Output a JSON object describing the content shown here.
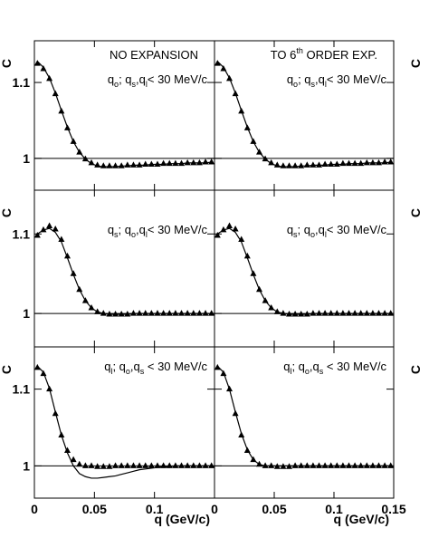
{
  "chart_data": [
    {
      "type": "line",
      "title": [
        "NO EXPANSION"
      ],
      "annotation": [
        "q",
        "o",
        "; q",
        "s",
        ",q",
        "l",
        "< 30 MeV/c"
      ],
      "annotation_script": "sub",
      "ylabel": "C",
      "xlim": [
        0,
        0.15
      ],
      "xticks": [
        0,
        0.05,
        0.1
      ],
      "x_tick_labels": false,
      "ylim": [
        0.958,
        1.155
      ],
      "yticks": [
        1,
        1.1
      ],
      "y_tick_labels": true,
      "reference_line": 1,
      "x": [
        0.0025,
        0.0075,
        0.0125,
        0.0175,
        0.0225,
        0.0275,
        0.0325,
        0.0375,
        0.0425,
        0.0475,
        0.0525,
        0.0575,
        0.0625,
        0.0675,
        0.0725,
        0.0775,
        0.0825,
        0.0875,
        0.0925,
        0.0975,
        0.1025,
        0.1075,
        0.1125,
        0.1175,
        0.1225,
        0.1275,
        0.1325,
        0.1375,
        0.1425,
        0.1475
      ],
      "series": [
        {
          "marker": "triangle",
          "color": "#000000",
          "values": [
            1.125,
            1.118,
            1.105,
            1.085,
            1.062,
            1.04,
            1.022,
            1.008,
            0.999,
            0.994,
            0.991,
            0.99,
            0.99,
            0.99,
            0.99,
            0.991,
            0.991,
            0.991,
            0.992,
            0.992,
            0.992,
            0.993,
            0.993,
            0.993,
            0.993,
            0.994,
            0.994,
            0.994,
            0.995,
            0.995
          ]
        },
        {
          "style": "line",
          "color": "#000000",
          "values": [
            1.128,
            1.12,
            1.106,
            1.086,
            1.063,
            1.041,
            1.022,
            1.008,
            0.999,
            0.993,
            0.99,
            0.989,
            0.989,
            0.989,
            0.99,
            0.99,
            0.991,
            0.991,
            0.991,
            0.992,
            0.992,
            0.992,
            0.993,
            0.993,
            0.993,
            0.994,
            0.994,
            0.994,
            0.994,
            0.995
          ]
        }
      ]
    },
    {
      "type": "line",
      "title": [
        "TO 6",
        "th",
        " ORDER EXP."
      ],
      "title_script": "sup",
      "annotation": [
        "q",
        "o",
        "; q",
        "s",
        ",q",
        "l",
        "< 30 MeV/c"
      ],
      "annotation_script": "sub",
      "ylabel": "C",
      "xlim": [
        0,
        0.15
      ],
      "xticks": [
        0,
        0.05,
        0.1,
        0.15
      ],
      "x_tick_labels": false,
      "ylim": [
        0.958,
        1.155
      ],
      "yticks": [
        1,
        1.1
      ],
      "y_tick_labels": false,
      "reference_line": 1,
      "x": [
        0.0025,
        0.0075,
        0.0125,
        0.0175,
        0.0225,
        0.0275,
        0.0325,
        0.0375,
        0.0425,
        0.0475,
        0.0525,
        0.0575,
        0.0625,
        0.0675,
        0.0725,
        0.0775,
        0.0825,
        0.0875,
        0.0925,
        0.0975,
        0.1025,
        0.1075,
        0.1125,
        0.1175,
        0.1225,
        0.1275,
        0.1325,
        0.1375,
        0.1425,
        0.1475
      ],
      "series": [
        {
          "marker": "triangle",
          "color": "#000000",
          "values": [
            1.125,
            1.118,
            1.105,
            1.085,
            1.062,
            1.04,
            1.022,
            1.008,
            0.999,
            0.994,
            0.991,
            0.99,
            0.99,
            0.99,
            0.99,
            0.991,
            0.991,
            0.991,
            0.992,
            0.992,
            0.992,
            0.993,
            0.993,
            0.993,
            0.993,
            0.994,
            0.994,
            0.994,
            0.995,
            0.995
          ]
        },
        {
          "style": "line",
          "color": "#000000",
          "values": [
            1.128,
            1.12,
            1.106,
            1.086,
            1.063,
            1.041,
            1.022,
            1.008,
            0.999,
            0.993,
            0.99,
            0.989,
            0.989,
            0.989,
            0.99,
            0.99,
            0.991,
            0.991,
            0.991,
            0.992,
            0.992,
            0.992,
            0.993,
            0.993,
            0.993,
            0.994,
            0.994,
            0.994,
            0.994,
            0.995
          ]
        }
      ]
    },
    {
      "type": "line",
      "annotation": [
        "q",
        "s",
        "; q",
        "o",
        ",q",
        "l",
        "< 30 MeV/c"
      ],
      "annotation_script": "sub",
      "ylabel": "C",
      "xlim": [
        0,
        0.15
      ],
      "xticks": [
        0,
        0.05,
        0.1
      ],
      "x_tick_labels": false,
      "ylim": [
        0.958,
        1.155
      ],
      "yticks": [
        1,
        1.1
      ],
      "y_tick_labels": true,
      "reference_line": 1,
      "x": [
        0.0025,
        0.0075,
        0.0125,
        0.0175,
        0.0225,
        0.0275,
        0.0325,
        0.0375,
        0.0425,
        0.0475,
        0.0525,
        0.0575,
        0.0625,
        0.0675,
        0.0725,
        0.0775,
        0.0825,
        0.0875,
        0.0925,
        0.0975,
        0.1025,
        0.1075,
        0.1125,
        0.1175,
        0.1225,
        0.1275,
        0.1325,
        0.1375,
        0.1425,
        0.1475
      ],
      "series": [
        {
          "marker": "triangle",
          "color": "#000000",
          "values": [
            1.098,
            1.105,
            1.11,
            1.106,
            1.093,
            1.072,
            1.05,
            1.03,
            1.016,
            1.007,
            1.002,
            1.0,
            0.999,
            0.999,
            0.999,
            0.999,
            1.0,
            1.0,
            1.0,
            1.0,
            1.0,
            1.0,
            1.0,
            1.0,
            1.0,
            1.0,
            1.0,
            1.0,
            1.0,
            1.0
          ]
        },
        {
          "style": "line",
          "color": "#000000",
          "values": [
            1.1,
            1.105,
            1.107,
            1.102,
            1.09,
            1.07,
            1.049,
            1.03,
            1.016,
            1.007,
            1.002,
            1.0,
            0.999,
            0.999,
            0.999,
            0.999,
            1.0,
            1.0,
            1.0,
            1.0,
            1.0,
            1.0,
            1.0,
            1.0,
            1.0,
            1.0,
            1.0,
            1.0,
            1.0,
            1.0
          ]
        }
      ]
    },
    {
      "type": "line",
      "annotation": [
        "q",
        "s",
        "; q",
        "o",
        ",q",
        "l",
        "< 30 MeV/c"
      ],
      "annotation_script": "sub",
      "ylabel": "C",
      "xlim": [
        0,
        0.15
      ],
      "xticks": [
        0,
        0.05,
        0.1,
        0.15
      ],
      "x_tick_labels": false,
      "ylim": [
        0.958,
        1.155
      ],
      "yticks": [
        1,
        1.1
      ],
      "y_tick_labels": false,
      "reference_line": 1,
      "x": [
        0.0025,
        0.0075,
        0.0125,
        0.0175,
        0.0225,
        0.0275,
        0.0325,
        0.0375,
        0.0425,
        0.0475,
        0.0525,
        0.0575,
        0.0625,
        0.0675,
        0.0725,
        0.0775,
        0.0825,
        0.0875,
        0.0925,
        0.0975,
        0.1025,
        0.1075,
        0.1125,
        0.1175,
        0.1225,
        0.1275,
        0.1325,
        0.1375,
        0.1425,
        0.1475
      ],
      "series": [
        {
          "marker": "triangle",
          "color": "#000000",
          "values": [
            1.098,
            1.105,
            1.11,
            1.106,
            1.093,
            1.072,
            1.05,
            1.03,
            1.016,
            1.007,
            1.002,
            1.0,
            0.999,
            0.999,
            0.999,
            0.999,
            1.0,
            1.0,
            1.0,
            1.0,
            1.0,
            1.0,
            1.0,
            1.0,
            1.0,
            1.0,
            1.0,
            1.0,
            1.0,
            1.0
          ]
        },
        {
          "style": "line",
          "color": "#000000",
          "values": [
            1.1,
            1.105,
            1.107,
            1.102,
            1.09,
            1.07,
            1.049,
            1.03,
            1.016,
            1.007,
            1.002,
            1.0,
            0.999,
            0.999,
            0.999,
            0.999,
            1.0,
            1.0,
            1.0,
            1.0,
            1.0,
            1.0,
            1.0,
            1.0,
            1.0,
            1.0,
            1.0,
            1.0,
            1.0,
            1.0
          ]
        }
      ]
    },
    {
      "type": "line",
      "annotation": [
        "q",
        "l",
        "; q",
        "o",
        ",q",
        "s",
        " < 30 MeV/c"
      ],
      "annotation_script": "sub",
      "ylabel": "C",
      "xlabel": "q (GeV/c)",
      "xlim": [
        0,
        0.15
      ],
      "xticks": [
        0,
        0.05,
        0.1
      ],
      "x_tick_labels": true,
      "ylim": [
        0.958,
        1.155
      ],
      "yticks": [
        1,
        1.1
      ],
      "y_tick_labels": true,
      "reference_line": 1,
      "x": [
        0.0025,
        0.0075,
        0.0125,
        0.0175,
        0.0225,
        0.0275,
        0.0325,
        0.0375,
        0.0425,
        0.0475,
        0.0525,
        0.0575,
        0.0625,
        0.0675,
        0.0725,
        0.0775,
        0.0825,
        0.0875,
        0.0925,
        0.0975,
        0.1025,
        0.1075,
        0.1125,
        0.1175,
        0.1225,
        0.1275,
        0.1325,
        0.1375,
        0.1425,
        0.1475
      ],
      "series": [
        {
          "marker": "triangle",
          "color": "#000000",
          "values": [
            1.128,
            1.12,
            1.1,
            1.068,
            1.04,
            1.02,
            1.008,
            1.002,
            1.0,
            1.0,
            0.999,
            0.999,
            0.999,
            1.0,
            1.0,
            1.0,
            1.0,
            1.0,
            1.0,
            1.0,
            1.0,
            1.0,
            1.0,
            1.0,
            1.0,
            1.0,
            1.0,
            1.0,
            1.0,
            1.0
          ]
        },
        {
          "style": "line",
          "color": "#000000",
          "values": [
            1.13,
            1.122,
            1.101,
            1.07,
            1.04,
            1.017,
            1.0,
            0.99,
            0.986,
            0.984,
            0.984,
            0.985,
            0.986,
            0.987,
            0.989,
            0.991,
            0.993,
            0.995,
            0.996,
            0.997,
            0.998,
            0.999,
            0.999,
            1.0,
            1.0,
            1.0,
            1.0,
            1.0,
            1.0,
            1.0
          ]
        }
      ]
    },
    {
      "type": "line",
      "annotation": [
        "q",
        "l",
        "; q",
        "o",
        ",q",
        "s",
        " < 30 MeV/c"
      ],
      "annotation_script": "sub",
      "ylabel": "C",
      "xlabel": "q (GeV/c)",
      "xlim": [
        0,
        0.15
      ],
      "xticks": [
        0,
        0.05,
        0.1,
        0.15
      ],
      "x_tick_labels": true,
      "ylim": [
        0.958,
        1.155
      ],
      "yticks": [
        1,
        1.1
      ],
      "y_tick_labels": false,
      "reference_line": 1,
      "x": [
        0.0025,
        0.0075,
        0.0125,
        0.0175,
        0.0225,
        0.0275,
        0.0325,
        0.0375,
        0.0425,
        0.0475,
        0.0525,
        0.0575,
        0.0625,
        0.0675,
        0.0725,
        0.0775,
        0.0825,
        0.0875,
        0.0925,
        0.0975,
        0.1025,
        0.1075,
        0.1125,
        0.1175,
        0.1225,
        0.1275,
        0.1325,
        0.1375,
        0.1425,
        0.1475
      ],
      "series": [
        {
          "marker": "triangle",
          "color": "#000000",
          "values": [
            1.128,
            1.12,
            1.1,
            1.068,
            1.04,
            1.02,
            1.008,
            1.002,
            1.0,
            1.0,
            0.999,
            0.999,
            0.999,
            1.0,
            1.0,
            1.0,
            1.0,
            1.0,
            1.0,
            1.0,
            1.0,
            1.0,
            1.0,
            1.0,
            1.0,
            1.0,
            1.0,
            1.0,
            1.0,
            1.0
          ]
        },
        {
          "style": "line",
          "color": "#000000",
          "values": [
            1.13,
            1.122,
            1.1,
            1.07,
            1.042,
            1.021,
            1.008,
            1.002,
            1.0,
            1.0,
            1.0,
            1.0,
            1.0,
            1.0,
            1.0,
            1.0,
            1.0,
            1.0,
            1.0,
            1.0,
            1.0,
            1.0,
            1.0,
            1.0,
            1.0,
            1.0,
            1.0,
            1.0,
            1.0,
            1.0
          ]
        }
      ]
    }
  ]
}
